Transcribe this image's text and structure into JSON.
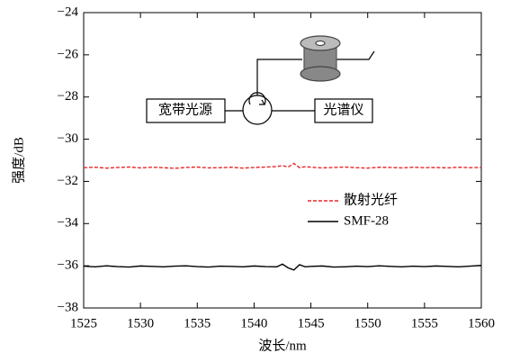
{
  "chart_data": {
    "type": "line",
    "x_label": "波长/nm",
    "y_label": "强度/dB",
    "x": [
      1525,
      1526,
      1527,
      1528,
      1529,
      1530,
      1531,
      1532,
      1533,
      1534,
      1535,
      1536,
      1537,
      1538,
      1539,
      1540,
      1541,
      1542,
      1542.5,
      1543,
      1543.5,
      1544,
      1544.5,
      1545,
      1546,
      1547,
      1548,
      1549,
      1550,
      1551,
      1552,
      1553,
      1554,
      1555,
      1556,
      1557,
      1558,
      1559,
      1560
    ],
    "series": [
      {
        "name": "散射光纤",
        "color": "#e8262a",
        "dash": true,
        "values": [
          -31.35,
          -31.33,
          -31.37,
          -31.34,
          -31.32,
          -31.36,
          -31.33,
          -31.35,
          -31.38,
          -31.34,
          -31.32,
          -31.36,
          -31.35,
          -31.33,
          -31.37,
          -31.34,
          -31.32,
          -31.3,
          -31.25,
          -31.32,
          -31.15,
          -31.35,
          -31.3,
          -31.33,
          -31.36,
          -31.34,
          -31.32,
          -31.35,
          -31.37,
          -31.33,
          -31.34,
          -31.36,
          -31.33,
          -31.35,
          -31.34,
          -31.36,
          -31.33,
          -31.35,
          -31.34
        ]
      },
      {
        "name": "SMF-28",
        "color": "#000000",
        "dash": false,
        "values": [
          -36.02,
          -36.05,
          -36.0,
          -36.04,
          -36.06,
          -36.01,
          -36.03,
          -36.05,
          -36.02,
          -36.0,
          -36.04,
          -36.06,
          -36.02,
          -36.03,
          -36.05,
          -36.01,
          -36.04,
          -36.05,
          -35.92,
          -36.1,
          -36.2,
          -35.95,
          -36.05,
          -36.03,
          -36.01,
          -36.06,
          -36.05,
          -36.02,
          -36.04,
          -36.0,
          -36.03,
          -36.05,
          -36.02,
          -36.04,
          -36.01,
          -36.03,
          -36.05,
          -36.02,
          -35.98
        ]
      }
    ],
    "xlim": [
      1525,
      1560
    ],
    "xticks": [
      1525,
      1530,
      1535,
      1540,
      1545,
      1550,
      1555,
      1560
    ],
    "ylim": [
      -38,
      -24
    ],
    "yticks": [
      {
        "value": -38,
        "label": "−38"
      },
      {
        "value": -36,
        "label": "−36"
      },
      {
        "value": -34,
        "label": "−34"
      },
      {
        "value": -32,
        "label": "−32"
      },
      {
        "value": -30,
        "label": "−30"
      },
      {
        "value": -28,
        "label": "−28"
      },
      {
        "value": -26,
        "label": "−26"
      },
      {
        "value": -24,
        "label": "−24"
      }
    ],
    "annotations": [
      "宽带光源",
      "光谱仪"
    ]
  }
}
